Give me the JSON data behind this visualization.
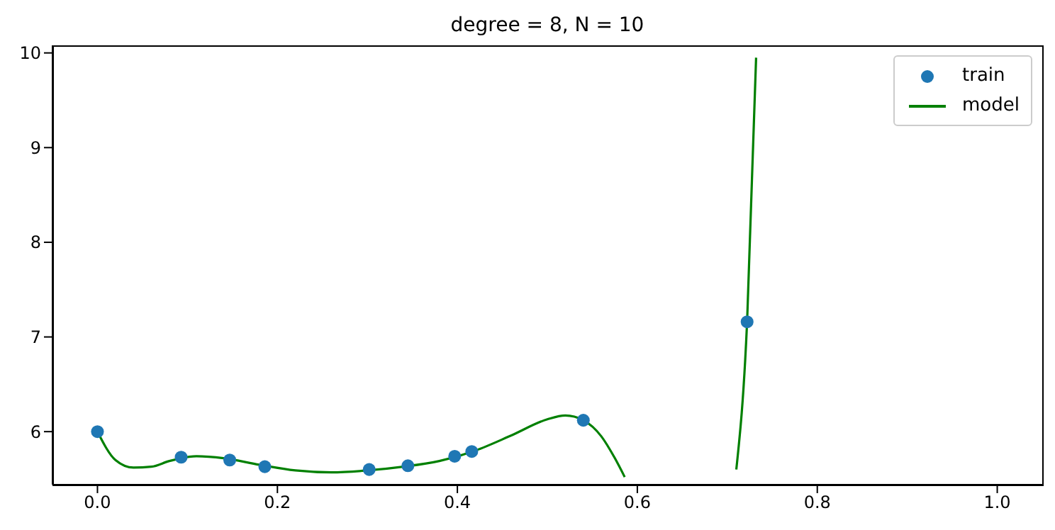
{
  "chart_data": {
    "type": "scatter",
    "title": "degree = 8, N = 10",
    "series": [
      {
        "name": "train",
        "marker": "circle",
        "color": "#1f77b4",
        "x": [
          0.0,
          0.093,
          0.147,
          0.186,
          0.302,
          0.345,
          0.397,
          0.416,
          0.54,
          0.722
        ],
        "values": [
          6.0,
          5.73,
          5.7,
          5.63,
          5.6,
          5.64,
          5.74,
          5.79,
          6.12,
          7.16
        ]
      },
      {
        "name": "model",
        "type": "line",
        "marker": "none",
        "color": "#008000",
        "x": [
          0.0,
          0.02,
          0.04,
          0.06,
          0.08,
          0.11,
          0.14,
          0.18,
          0.22,
          0.26,
          0.3,
          0.34,
          0.38,
          0.42,
          0.46,
          0.5,
          0.52,
          0.54,
          0.56,
          0.575,
          0.586,
          0.65,
          0.71,
          0.722,
          0.732
        ],
        "values": [
          6.0,
          5.7,
          5.62,
          5.63,
          5.69,
          5.74,
          5.72,
          5.65,
          5.59,
          5.57,
          5.59,
          5.63,
          5.69,
          5.8,
          5.96,
          6.13,
          6.17,
          6.12,
          5.95,
          5.72,
          5.52,
          null,
          5.6,
          7.16,
          9.95
        ]
      }
    ],
    "xlim": [
      -0.05,
      1.05
    ],
    "xticks": [
      {
        "value": 0,
        "label": "0.0"
      },
      0.2,
      0.4,
      0.6,
      0.8,
      {
        "value": 1,
        "label": "1.0"
      }
    ],
    "ylim": [
      5.44,
      10.08
    ],
    "yticks": [
      6,
      7,
      8,
      9,
      10
    ],
    "legend": "top right",
    "line_style": "solid"
  }
}
